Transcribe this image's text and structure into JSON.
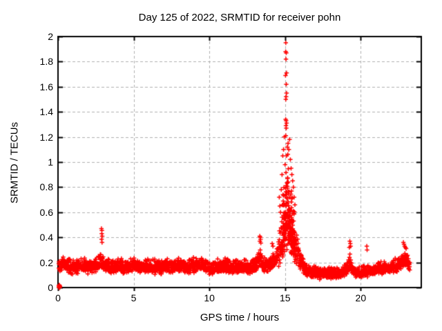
{
  "figure": {
    "background": "#ffffff",
    "border_color": "#000000",
    "text_color": "#000000"
  },
  "chart_data": {
    "type": "scatter",
    "title": "Day 125 of 2022, SRMTID for receiver pohn",
    "xlabel": "GPS time / hours",
    "ylabel": "SRMTID / TECUs",
    "xlim": [
      0,
      24
    ],
    "ylim": [
      0,
      2
    ],
    "x_ticks": [
      0,
      5,
      10,
      15,
      20
    ],
    "x_tick_labels": [
      "0",
      "5",
      "10",
      "15",
      "20"
    ],
    "y_ticks": [
      0,
      0.2,
      0.4,
      0.6,
      0.8,
      1,
      1.2,
      1.4,
      1.6,
      1.8,
      2
    ],
    "y_tick_labels": [
      "0",
      "0.2",
      "0.4",
      "0.6",
      "0.8",
      "1",
      "1.2",
      "1.4",
      "1.6",
      "1.8",
      "2"
    ],
    "grid": true,
    "grid_x_lines": [
      5,
      10,
      15,
      20
    ],
    "grid_y_lines": [
      0.2,
      0.4,
      0.6,
      0.8,
      1,
      1.2,
      1.4,
      1.6,
      1.8
    ],
    "legend": "none",
    "marker": "plus",
    "marker_color": "#ff0000",
    "grid_color": "#b0b0b0",
    "notable": {
      "peak_x_hours": 15.1,
      "peak_y_tecus": 1.95,
      "baseline_band": [
        0.07,
        0.3
      ],
      "data_x_range": [
        0.05,
        23.25
      ]
    },
    "generator": {
      "seed": 42,
      "step_hours": 0.01,
      "from": 0.05,
      "to": 23.25,
      "x_jitter": 0.012,
      "y_floor": 0.035,
      "densify": [
        {
          "from": 14.8,
          "to": 15.65,
          "step": 0.006
        }
      ],
      "mean": [
        [
          0,
          0.17
        ],
        [
          0.5,
          0.18
        ],
        [
          1,
          0.15
        ],
        [
          1.5,
          0.17
        ],
        [
          2,
          0.16
        ],
        [
          2.5,
          0.17
        ],
        [
          2.85,
          0.21
        ],
        [
          3.05,
          0.17
        ],
        [
          3.5,
          0.15
        ],
        [
          4,
          0.17
        ],
        [
          4.5,
          0.16
        ],
        [
          5,
          0.18
        ],
        [
          5.5,
          0.16
        ],
        [
          6,
          0.17
        ],
        [
          6.5,
          0.15
        ],
        [
          7,
          0.16
        ],
        [
          7.5,
          0.17
        ],
        [
          8,
          0.17
        ],
        [
          8.5,
          0.16
        ],
        [
          9,
          0.17
        ],
        [
          9.5,
          0.17
        ],
        [
          10,
          0.15
        ],
        [
          10.5,
          0.16
        ],
        [
          11,
          0.17
        ],
        [
          11.5,
          0.16
        ],
        [
          12,
          0.15
        ],
        [
          12.5,
          0.16
        ],
        [
          13,
          0.16
        ],
        [
          13.35,
          0.23
        ],
        [
          13.6,
          0.17
        ],
        [
          14,
          0.18
        ],
        [
          14.3,
          0.2
        ],
        [
          14.6,
          0.28
        ],
        [
          14.8,
          0.38
        ],
        [
          15,
          0.5
        ],
        [
          15.15,
          0.56
        ],
        [
          15.3,
          0.5
        ],
        [
          15.5,
          0.42
        ],
        [
          15.7,
          0.3
        ],
        [
          16,
          0.2
        ],
        [
          16.3,
          0.14
        ],
        [
          16.8,
          0.12
        ],
        [
          17.3,
          0.11
        ],
        [
          17.8,
          0.12
        ],
        [
          18.3,
          0.11
        ],
        [
          18.8,
          0.13
        ],
        [
          19.1,
          0.15
        ],
        [
          19.3,
          0.19
        ],
        [
          19.6,
          0.12
        ],
        [
          20,
          0.12
        ],
        [
          20.5,
          0.13
        ],
        [
          21,
          0.14
        ],
        [
          21.5,
          0.15
        ],
        [
          22,
          0.16
        ],
        [
          22.5,
          0.18
        ],
        [
          22.85,
          0.23
        ],
        [
          23.1,
          0.2
        ],
        [
          23.25,
          0.18
        ]
      ],
      "spread": [
        [
          0,
          0.055
        ],
        [
          2.75,
          0.055
        ],
        [
          2.9,
          0.085
        ],
        [
          3.05,
          0.055
        ],
        [
          13,
          0.055
        ],
        [
          13.35,
          0.075
        ],
        [
          13.6,
          0.055
        ],
        [
          14.4,
          0.06
        ],
        [
          14.6,
          0.12
        ],
        [
          14.8,
          0.17
        ],
        [
          15,
          0.24
        ],
        [
          15.15,
          0.28
        ],
        [
          15.4,
          0.22
        ],
        [
          15.7,
          0.13
        ],
        [
          16,
          0.08
        ],
        [
          16.3,
          0.05
        ],
        [
          19.1,
          0.05
        ],
        [
          19.3,
          0.07
        ],
        [
          19.6,
          0.045
        ],
        [
          22,
          0.05
        ],
        [
          22.8,
          0.065
        ],
        [
          23.25,
          0.06
        ]
      ],
      "pos_factor": [
        [
          0,
          1.35
        ],
        [
          14.4,
          1.35
        ],
        [
          14.7,
          1.7
        ],
        [
          15,
          2
        ],
        [
          15.45,
          2
        ],
        [
          15.8,
          1.5
        ],
        [
          16.2,
          1.25
        ],
        [
          24,
          1.25
        ]
      ]
    },
    "outlier_points": [
      [
        2.87,
        0.47
      ],
      [
        2.9,
        0.455
      ],
      [
        2.89,
        0.43
      ],
      [
        2.92,
        0.41
      ],
      [
        2.88,
        0.385
      ],
      [
        2.91,
        0.36
      ],
      [
        13.33,
        0.41
      ],
      [
        13.36,
        0.4
      ],
      [
        13.38,
        0.385
      ],
      [
        13.34,
        0.37
      ],
      [
        13.4,
        0.355
      ],
      [
        14.15,
        0.35
      ],
      [
        14.2,
        0.33
      ],
      [
        14.62,
        0.72
      ],
      [
        14.66,
        0.65
      ],
      [
        14.7,
        0.6
      ],
      [
        14.75,
        0.78
      ],
      [
        14.8,
        0.9
      ],
      [
        14.85,
        1.05
      ],
      [
        14.9,
        1.1
      ],
      [
        14.95,
        1.2
      ],
      [
        15.05,
        1.95
      ],
      [
        15.04,
        1.88
      ],
      [
        15.08,
        1.87
      ],
      [
        15.06,
        1.82
      ],
      [
        15.1,
        1.71
      ],
      [
        15.03,
        1.69
      ],
      [
        15.08,
        1.62
      ],
      [
        15.1,
        1.55
      ],
      [
        15.07,
        1.52
      ],
      [
        15.05,
        1.5
      ],
      [
        15.04,
        1.34
      ],
      [
        15.07,
        1.33
      ],
      [
        15.1,
        1.31
      ],
      [
        15.06,
        1.29
      ],
      [
        15.08,
        1.27
      ],
      [
        15.05,
        1.21
      ],
      [
        15.3,
        1.18
      ],
      [
        15.2,
        1.15
      ],
      [
        15.15,
        1.12
      ],
      [
        15.25,
        1.1
      ],
      [
        15.1,
        1.05
      ],
      [
        15.35,
        1.02
      ],
      [
        15.0,
        0.98
      ],
      [
        15.4,
        0.95
      ],
      [
        15.45,
        0.9
      ],
      [
        15.5,
        0.85
      ],
      [
        15.55,
        0.8
      ],
      [
        15.6,
        0.72
      ],
      [
        15.65,
        0.66
      ],
      [
        19.28,
        0.37
      ],
      [
        19.31,
        0.35
      ],
      [
        19.33,
        0.33
      ],
      [
        19.25,
        0.32
      ],
      [
        20.4,
        0.33
      ],
      [
        20.42,
        0.3
      ],
      [
        22.82,
        0.36
      ],
      [
        22.86,
        0.345
      ],
      [
        22.9,
        0.33
      ],
      [
        22.95,
        0.32
      ],
      [
        23.0,
        0.31
      ]
    ],
    "origin_cluster": [
      [
        0.05,
        0.0
      ],
      [
        0.08,
        0.01
      ],
      [
        0.1,
        0.005
      ],
      [
        0.12,
        0.0
      ],
      [
        0.07,
        0.02
      ],
      [
        0.1,
        0.018
      ],
      [
        0.13,
        0.01
      ],
      [
        0.06,
        0.012
      ]
    ]
  }
}
